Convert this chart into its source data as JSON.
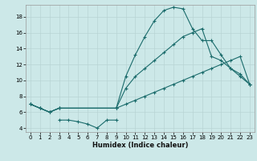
{
  "xlabel": "Humidex (Indice chaleur)",
  "bg_color": "#cce8e8",
  "line_color": "#1a6b6b",
  "grid_color": "#b8d4d4",
  "xlim": [
    -0.5,
    23.5
  ],
  "ylim": [
    3.5,
    19.5
  ],
  "yticks": [
    4,
    6,
    8,
    10,
    12,
    14,
    16,
    18
  ],
  "xticks": [
    0,
    1,
    2,
    3,
    4,
    5,
    6,
    7,
    8,
    9,
    10,
    11,
    12,
    13,
    14,
    15,
    16,
    17,
    18,
    19,
    20,
    21,
    22,
    23
  ],
  "series1_x": [
    0,
    1,
    2,
    3,
    9,
    10,
    11,
    12,
    13,
    14,
    15,
    16,
    17,
    18,
    19,
    20,
    21,
    22,
    23
  ],
  "series1_y": [
    7.0,
    6.5,
    6.0,
    6.5,
    6.5,
    10.5,
    13.2,
    15.5,
    17.5,
    18.8,
    19.2,
    19.0,
    16.5,
    15.0,
    15.0,
    13.2,
    11.5,
    10.5,
    9.5
  ],
  "series2_x": [
    0,
    1,
    2,
    3,
    9,
    10,
    11,
    12,
    13,
    14,
    15,
    16,
    17,
    18,
    19,
    20,
    21,
    22,
    23
  ],
  "series2_y": [
    7.0,
    6.5,
    6.0,
    6.5,
    6.5,
    9.0,
    10.5,
    11.5,
    12.5,
    13.5,
    14.5,
    15.5,
    16.0,
    16.5,
    13.0,
    12.5,
    11.5,
    10.8,
    9.5
  ],
  "series3_x": [
    0,
    1,
    2,
    3,
    9,
    10,
    11,
    12,
    13,
    14,
    15,
    16,
    17,
    18,
    19,
    20,
    21,
    22,
    23
  ],
  "series3_y": [
    7.0,
    6.5,
    6.0,
    6.5,
    6.5,
    7.0,
    7.5,
    8.0,
    8.5,
    9.0,
    9.5,
    10.0,
    10.5,
    11.0,
    11.5,
    12.0,
    12.5,
    13.0,
    9.5
  ],
  "series4_x": [
    3,
    4,
    5,
    6,
    7,
    8,
    9
  ],
  "series4_y": [
    5.0,
    5.0,
    4.8,
    4.5,
    4.0,
    5.0,
    5.0
  ]
}
